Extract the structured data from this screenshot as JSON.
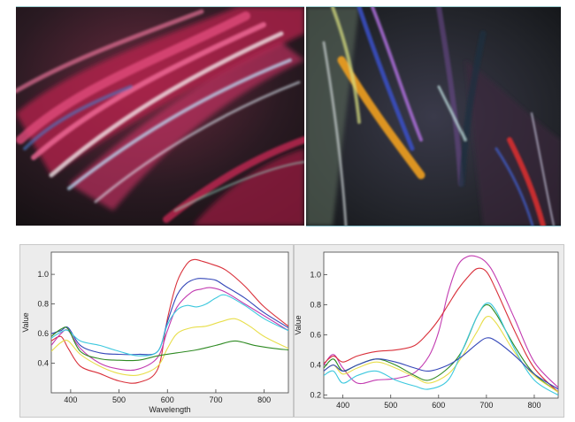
{
  "colors": {
    "red": "#d9303a",
    "blue": "#3447b8",
    "magenta": "#c23ab0",
    "cyan": "#3cc8de",
    "yellow": "#e8de4a",
    "green": "#2e8a22"
  },
  "chart_data": [
    {
      "type": "line",
      "xlabel": "Wavelength",
      "ylabel": "Value",
      "xlim": [
        360,
        850
      ],
      "ylim": [
        0.2,
        1.15
      ],
      "xticks": [
        400,
        500,
        600,
        700,
        800
      ],
      "yticks": [
        0.4,
        0.6,
        0.8,
        1.0
      ],
      "grid": false,
      "series": [
        {
          "color": "red",
          "x": [
            360,
            380,
            395,
            420,
            460,
            500,
            540,
            580,
            600,
            620,
            640,
            655,
            670,
            690,
            720,
            760,
            800,
            850
          ],
          "values": [
            0.55,
            0.58,
            0.5,
            0.38,
            0.33,
            0.28,
            0.27,
            0.36,
            0.7,
            0.95,
            1.07,
            1.1,
            1.09,
            1.07,
            1.03,
            0.92,
            0.78,
            0.65
          ]
        },
        {
          "color": "blue",
          "x": [
            360,
            380,
            395,
            420,
            460,
            500,
            540,
            580,
            600,
            620,
            640,
            660,
            680,
            700,
            720,
            760,
            800,
            850
          ],
          "values": [
            0.6,
            0.62,
            0.64,
            0.52,
            0.47,
            0.46,
            0.46,
            0.48,
            0.68,
            0.86,
            0.94,
            0.97,
            0.97,
            0.96,
            0.92,
            0.84,
            0.74,
            0.64
          ]
        },
        {
          "color": "magenta",
          "x": [
            360,
            380,
            395,
            420,
            460,
            500,
            540,
            580,
            600,
            620,
            650,
            670,
            690,
            720,
            760,
            800,
            850
          ],
          "values": [
            0.52,
            0.6,
            0.62,
            0.5,
            0.4,
            0.36,
            0.36,
            0.44,
            0.62,
            0.78,
            0.88,
            0.9,
            0.91,
            0.88,
            0.8,
            0.72,
            0.62
          ]
        },
        {
          "color": "cyan",
          "x": [
            360,
            380,
            395,
            420,
            460,
            500,
            540,
            580,
            600,
            620,
            640,
            660,
            680,
            700,
            720,
            760,
            800,
            850
          ],
          "values": [
            0.57,
            0.61,
            0.62,
            0.55,
            0.52,
            0.48,
            0.45,
            0.48,
            0.66,
            0.76,
            0.79,
            0.78,
            0.8,
            0.84,
            0.86,
            0.79,
            0.7,
            0.62
          ]
        },
        {
          "color": "yellow",
          "x": [
            360,
            380,
            395,
            420,
            460,
            500,
            540,
            580,
            600,
            620,
            650,
            680,
            710,
            740,
            770,
            800,
            850
          ],
          "values": [
            0.48,
            0.54,
            0.55,
            0.46,
            0.38,
            0.33,
            0.32,
            0.38,
            0.5,
            0.6,
            0.64,
            0.65,
            0.68,
            0.7,
            0.65,
            0.58,
            0.5
          ]
        },
        {
          "color": "green",
          "x": [
            360,
            380,
            395,
            420,
            460,
            500,
            540,
            580,
            620,
            660,
            700,
            740,
            780,
            820,
            850
          ],
          "values": [
            0.58,
            0.63,
            0.63,
            0.48,
            0.43,
            0.42,
            0.42,
            0.45,
            0.47,
            0.49,
            0.52,
            0.55,
            0.52,
            0.5,
            0.49
          ]
        }
      ]
    },
    {
      "type": "line",
      "xlabel": "",
      "ylabel": "Value",
      "xlim": [
        360,
        850
      ],
      "ylim": [
        0.18,
        1.15
      ],
      "xticks": [
        400,
        500,
        600,
        700,
        800
      ],
      "yticks": [
        0.2,
        0.4,
        0.6,
        0.8,
        1.0
      ],
      "grid": false,
      "series": [
        {
          "color": "magenta",
          "x": [
            360,
            380,
            400,
            430,
            470,
            510,
            550,
            580,
            600,
            620,
            640,
            660,
            680,
            700,
            720,
            760,
            800,
            850
          ],
          "values": [
            0.4,
            0.47,
            0.38,
            0.28,
            0.3,
            0.31,
            0.35,
            0.46,
            0.62,
            0.88,
            1.06,
            1.12,
            1.12,
            1.08,
            0.98,
            0.7,
            0.42,
            0.25
          ]
        },
        {
          "color": "red",
          "x": [
            360,
            380,
            400,
            430,
            470,
            510,
            550,
            580,
            600,
            620,
            640,
            660,
            680,
            700,
            720,
            760,
            800,
            850
          ],
          "values": [
            0.41,
            0.46,
            0.42,
            0.46,
            0.49,
            0.5,
            0.53,
            0.62,
            0.7,
            0.8,
            0.9,
            0.98,
            1.04,
            1.02,
            0.9,
            0.62,
            0.38,
            0.22
          ]
        },
        {
          "color": "green",
          "x": [
            360,
            380,
            400,
            430,
            470,
            510,
            550,
            580,
            620,
            650,
            680,
            700,
            720,
            760,
            800,
            850
          ],
          "values": [
            0.38,
            0.44,
            0.36,
            0.4,
            0.44,
            0.4,
            0.33,
            0.3,
            0.38,
            0.5,
            0.72,
            0.8,
            0.74,
            0.52,
            0.34,
            0.22
          ]
        },
        {
          "color": "yellow",
          "x": [
            360,
            380,
            400,
            430,
            470,
            510,
            550,
            580,
            620,
            650,
            680,
            700,
            720,
            760,
            800,
            850
          ],
          "values": [
            0.36,
            0.4,
            0.34,
            0.38,
            0.42,
            0.38,
            0.32,
            0.28,
            0.34,
            0.46,
            0.62,
            0.72,
            0.68,
            0.48,
            0.33,
            0.22
          ]
        },
        {
          "color": "cyan",
          "x": [
            360,
            380,
            400,
            430,
            470,
            510,
            550,
            580,
            620,
            650,
            680,
            700,
            720,
            760,
            800,
            850
          ],
          "values": [
            0.33,
            0.36,
            0.28,
            0.33,
            0.36,
            0.3,
            0.26,
            0.24,
            0.3,
            0.5,
            0.72,
            0.81,
            0.76,
            0.5,
            0.3,
            0.2
          ]
        },
        {
          "color": "blue",
          "x": [
            360,
            380,
            400,
            430,
            470,
            510,
            550,
            580,
            620,
            650,
            680,
            700,
            720,
            760,
            800,
            850
          ],
          "values": [
            0.36,
            0.4,
            0.36,
            0.4,
            0.44,
            0.42,
            0.38,
            0.36,
            0.4,
            0.46,
            0.54,
            0.58,
            0.56,
            0.46,
            0.34,
            0.24
          ]
        }
      ]
    }
  ]
}
